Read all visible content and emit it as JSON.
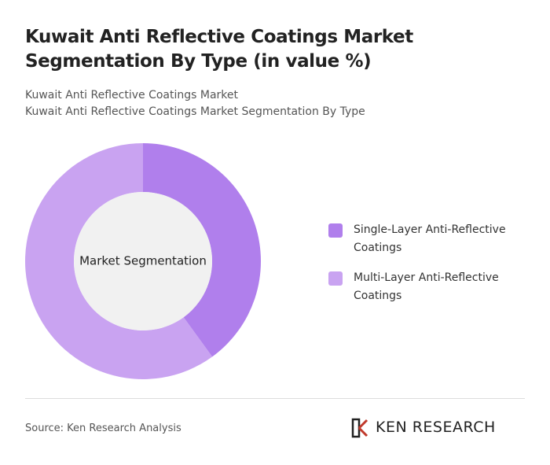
{
  "chart_data": {
    "type": "donut",
    "title": "Kuwait Anti Reflective Coatings Market Segmentation By Type (in value %)",
    "subtitle": [
      "Kuwait Anti Reflective Coatings Market",
      "Kuwait Anti Reflective Coatings Market Segmentation By Type"
    ],
    "center_label": "Market Segmentation",
    "series": [
      {
        "name": "Single-Layer Anti-Reflective Coatings",
        "color": "#b07fec",
        "values": [
          40
        ]
      },
      {
        "name": "Multi-Layer Anti-Reflective Coatings",
        "color": "#c9a3f1",
        "values": [
          60
        ]
      }
    ],
    "source": "Source: Ken Research Analysis",
    "logo": "KEN RESEARCH"
  }
}
